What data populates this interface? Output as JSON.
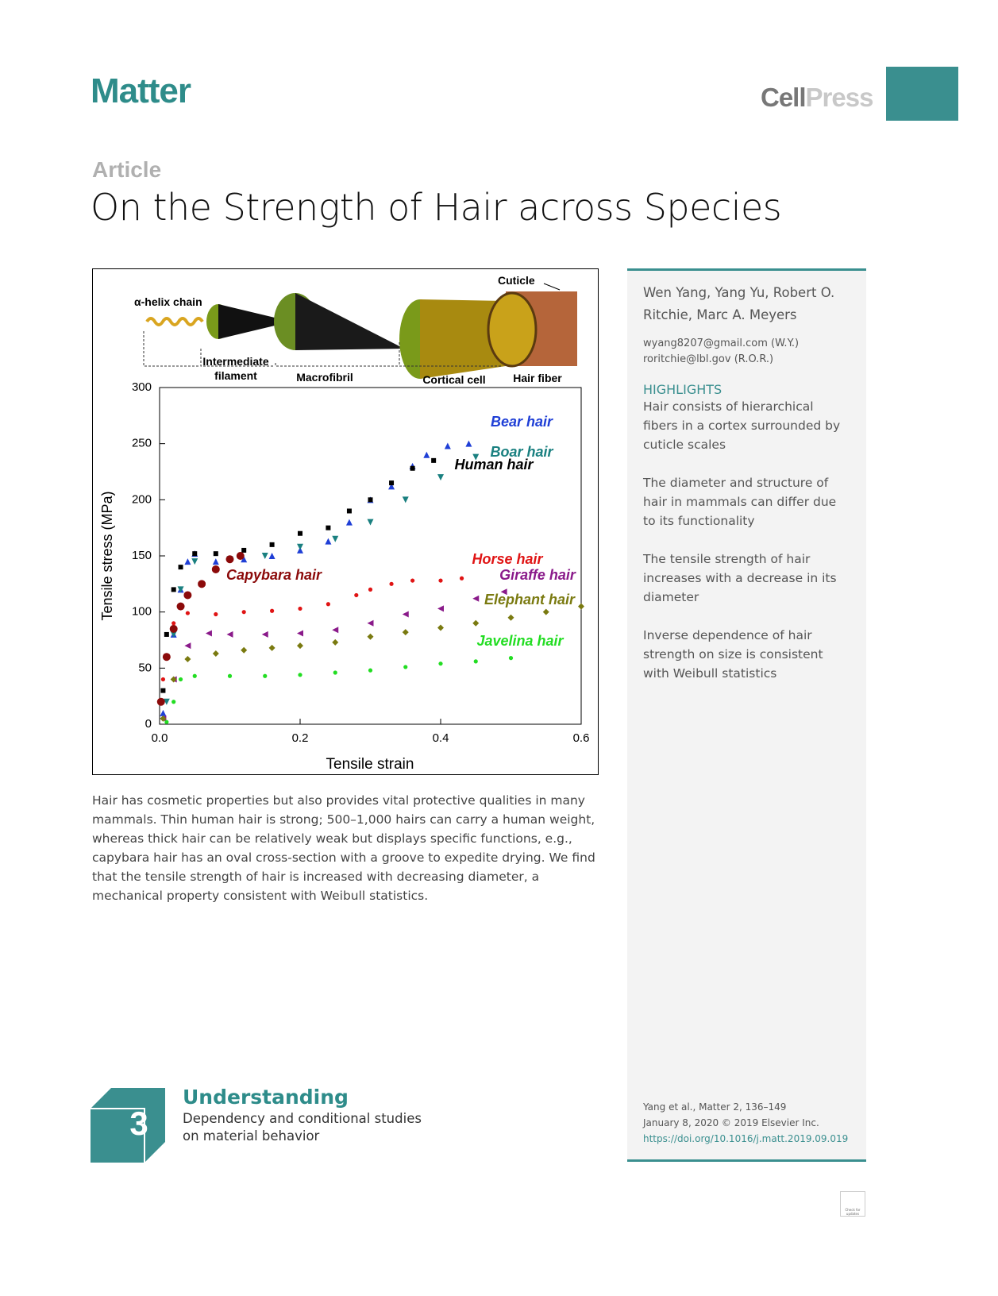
{
  "header": {
    "journal": "Matter",
    "publisher": [
      "Cell",
      "Press"
    ]
  },
  "article": {
    "kind": "Article",
    "title": "On the Strength of Hair across Species",
    "summary": "Hair has cosmetic properties but also provides vital protective qualities in many mammals. Thin human hair is strong; 500–1,000 hairs can carry a human weight, whereas thick hair can be relatively weak but displays specific functions, e.g., capybara hair has an oval cross-section with a groove to expedite drying. We find that the tensile strength of hair is increased with decreasing diameter, a mechanical property consistent with Weibull statistics."
  },
  "sidebar": {
    "authors": "Wen Yang, Yang Yu, Robert O. Ritchie, Marc A. Meyers",
    "emails": [
      "wyang8207@gmail.com (W.Y.)",
      "roritchie@lbl.gov (R.O.R.)"
    ],
    "highlights_heading": "HIGHLIGHTS",
    "highlights": [
      "Hair consists of hierarchical fibers in a cortex surrounded by cuticle scales",
      "The diameter and structure of hair in mammals can differ due to its functionality",
      "The tensile strength of hair increases with a decrease in its diameter",
      "Inverse dependence of hair strength on size is consistent with Weibull statistics"
    ],
    "citation": [
      "Yang et al., Matter 2, 136–149",
      "January 8, 2020 © 2019 Elsevier Inc.",
      "https://doi.org/10.1016/j.matt.2019.09.019"
    ]
  },
  "footer": {
    "number": "3",
    "level": "Understanding",
    "description": [
      "Dependency and conditional studies",
      "on material behavior"
    ],
    "badge": "Check for updates"
  },
  "schematic": {
    "alpha": "α-helix chain",
    "intermediate": [
      "Intermediate",
      "filament"
    ],
    "macrofibril": "Macrofibril",
    "cortical": "Cortical cell",
    "fiber": "Hair fiber",
    "cuticle": "Cuticle"
  },
  "chart_data": {
    "type": "scatter",
    "xlabel": "Tensile strain",
    "ylabel": "Tensile stress (MPa)",
    "xlim": [
      0,
      0.6
    ],
    "ylim": [
      0,
      300
    ],
    "xticks": [
      {
        "value": 0,
        "label": "0.0"
      },
      0.2,
      0.4,
      0.6
    ],
    "yticks": [
      0,
      50,
      100,
      150,
      200,
      250,
      300
    ],
    "series": [
      {
        "name": "Bear hair",
        "color": "#1f3fd6",
        "marker": "triangle-up",
        "x": [
          0.005,
          0.02,
          0.03,
          0.04,
          0.05,
          0.08,
          0.12,
          0.16,
          0.2,
          0.24,
          0.27,
          0.3,
          0.33,
          0.36,
          0.38,
          0.41,
          0.44
        ],
        "values": [
          10,
          80,
          120,
          145,
          152,
          145,
          147,
          150,
          155,
          163,
          180,
          200,
          212,
          230,
          240,
          248,
          250
        ]
      },
      {
        "name": "Human hair",
        "color": "#000000",
        "marker": "square",
        "x": [
          0.005,
          0.01,
          0.02,
          0.03,
          0.05,
          0.08,
          0.12,
          0.16,
          0.2,
          0.24,
          0.27,
          0.3,
          0.33,
          0.36,
          0.39
        ],
        "values": [
          30,
          80,
          120,
          140,
          152,
          152,
          155,
          160,
          170,
          175,
          190,
          200,
          215,
          228,
          235
        ]
      },
      {
        "name": "Boar hair",
        "color": "#1a8080",
        "marker": "triangle-down",
        "x": [
          0.01,
          0.02,
          0.03,
          0.05,
          0.1,
          0.15,
          0.2,
          0.25,
          0.3,
          0.35,
          0.4,
          0.45
        ],
        "values": [
          20,
          80,
          120,
          145,
          147,
          150,
          158,
          165,
          180,
          200,
          220,
          238
        ]
      },
      {
        "name": "Capybara hair",
        "color": "#8b0a0a",
        "marker": "circle-big",
        "x": [
          0.002,
          0.01,
          0.02,
          0.03,
          0.04,
          0.06,
          0.08,
          0.1,
          0.115
        ],
        "values": [
          20,
          60,
          85,
          105,
          115,
          125,
          138,
          147,
          150
        ]
      },
      {
        "name": "Horse hair",
        "color": "#e01414",
        "marker": "circle",
        "x": [
          0.005,
          0.02,
          0.04,
          0.08,
          0.12,
          0.16,
          0.2,
          0.24,
          0.28,
          0.3,
          0.33,
          0.36,
          0.4,
          0.43
        ],
        "values": [
          40,
          90,
          99,
          98,
          100,
          101,
          103,
          107,
          115,
          120,
          125,
          128,
          128,
          130
        ]
      },
      {
        "name": "Giraffe hair",
        "color": "#8a1a8a",
        "marker": "triangle-left",
        "x": [
          0.005,
          0.02,
          0.04,
          0.07,
          0.1,
          0.15,
          0.2,
          0.25,
          0.3,
          0.35,
          0.4,
          0.45,
          0.49
        ],
        "values": [
          5,
          40,
          70,
          81,
          80,
          80,
          81,
          84,
          90,
          98,
          103,
          112,
          118
        ]
      },
      {
        "name": "Elephant hair",
        "color": "#7a7a10",
        "marker": "diamond",
        "x": [
          0.005,
          0.02,
          0.04,
          0.08,
          0.12,
          0.16,
          0.2,
          0.25,
          0.3,
          0.35,
          0.4,
          0.45,
          0.5,
          0.55,
          0.6
        ],
        "values": [
          5,
          40,
          58,
          63,
          66,
          68,
          70,
          73,
          78,
          82,
          86,
          90,
          95,
          100,
          105
        ]
      },
      {
        "name": "Javelina hair",
        "color": "#22dd22",
        "marker": "circle",
        "x": [
          0.01,
          0.02,
          0.03,
          0.05,
          0.1,
          0.15,
          0.2,
          0.25,
          0.3,
          0.35,
          0.4,
          0.45,
          0.5
        ],
        "values": [
          2,
          20,
          40,
          43,
          43,
          43,
          44,
          46,
          48,
          51,
          54,
          56,
          59
        ]
      }
    ]
  }
}
